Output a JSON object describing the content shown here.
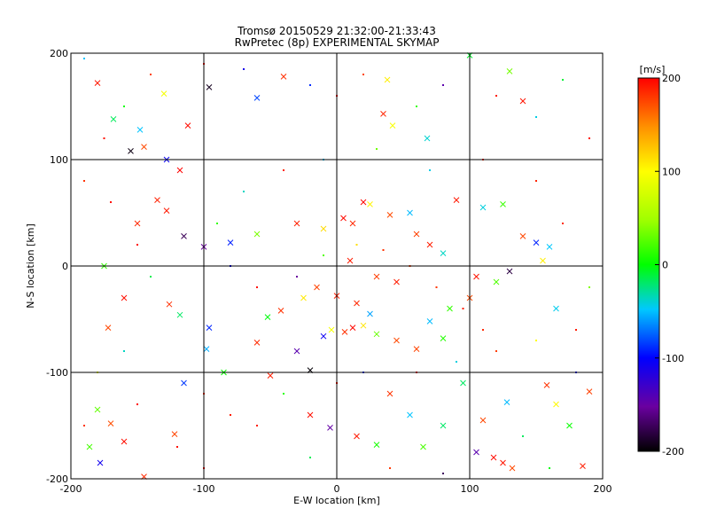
{
  "chart_data": {
    "type": "scatter",
    "title": "Tromsø 20150529 21:32:00-21:33:43",
    "subtitle": "RwPretec (8p) EXPERIMENTAL SKYMAP",
    "xlabel": "E-W location [km]",
    "ylabel": "N-S location [km]",
    "xlim": [
      -200,
      200
    ],
    "ylim": [
      -200,
      200
    ],
    "x_ticks": [
      "-200",
      "-100",
      "0",
      "100",
      "200"
    ],
    "y_ticks": [
      "-200",
      "-100",
      "0",
      "100",
      "200"
    ],
    "grid": true,
    "colorbar": {
      "label": "[m/s]",
      "range": [
        -200,
        200
      ],
      "ticks": [
        "-200",
        "-100",
        "0",
        "100",
        "200"
      ],
      "colormap": "rainbow (black-purple-blue-cyan-green-yellow-orange-red)"
    },
    "series": [
      {
        "marker": "x",
        "points": [
          [
            -180,
            172
          ],
          [
            -168,
            138
          ],
          [
            -148,
            128
          ],
          [
            -130,
            162
          ],
          [
            -112,
            132
          ],
          [
            -96,
            168
          ],
          [
            -60,
            158
          ],
          [
            -40,
            178
          ],
          [
            38,
            175
          ],
          [
            35,
            143
          ],
          [
            42,
            132
          ],
          [
            68,
            120
          ],
          [
            100,
            198
          ],
          [
            130,
            183
          ],
          [
            140,
            155
          ],
          [
            -145,
            112
          ],
          [
            -155,
            108
          ],
          [
            -128,
            100
          ],
          [
            -118,
            90
          ],
          [
            -135,
            62
          ],
          [
            -128,
            52
          ],
          [
            -115,
            28
          ],
          [
            -172,
            -58
          ],
          [
            -126,
            -36
          ],
          [
            -118,
            -46
          ],
          [
            -96,
            -58
          ],
          [
            -98,
            -78
          ],
          [
            -60,
            -72
          ],
          [
            -30,
            -80
          ],
          [
            -10,
            -66
          ],
          [
            -4,
            -60
          ],
          [
            6,
            -62
          ],
          [
            12,
            -58
          ],
          [
            20,
            -56
          ],
          [
            30,
            -64
          ],
          [
            45,
            -70
          ],
          [
            60,
            -78
          ],
          [
            80,
            -68
          ],
          [
            -85,
            -100
          ],
          [
            -50,
            -103
          ],
          [
            -20,
            -98
          ],
          [
            -115,
            -110
          ],
          [
            -160,
            -165
          ],
          [
            -170,
            -148
          ],
          [
            -180,
            -135
          ],
          [
            -186,
            -170
          ],
          [
            -178,
            -185
          ],
          [
            -122,
            -158
          ],
          [
            -145,
            -198
          ],
          [
            -20,
            -140
          ],
          [
            -5,
            -152
          ],
          [
            15,
            -160
          ],
          [
            30,
            -168
          ],
          [
            40,
            -120
          ],
          [
            55,
            -140
          ],
          [
            65,
            -170
          ],
          [
            80,
            -150
          ],
          [
            95,
            -110
          ],
          [
            105,
            -175
          ],
          [
            118,
            -180
          ],
          [
            125,
            -185
          ],
          [
            132,
            -190
          ],
          [
            110,
            -145
          ],
          [
            128,
            -128
          ],
          [
            158,
            -112
          ],
          [
            165,
            -130
          ],
          [
            175,
            -150
          ],
          [
            190,
            -118
          ],
          [
            185,
            -188
          ],
          [
            20,
            60
          ],
          [
            40,
            48
          ],
          [
            55,
            50
          ],
          [
            90,
            62
          ],
          [
            110,
            55
          ],
          [
            125,
            58
          ],
          [
            140,
            28
          ],
          [
            150,
            22
          ],
          [
            160,
            18
          ],
          [
            -60,
            30
          ],
          [
            -30,
            40
          ],
          [
            -10,
            35
          ],
          [
            5,
            45
          ],
          [
            12,
            40
          ],
          [
            25,
            58
          ],
          [
            -80,
            22
          ],
          [
            -100,
            18
          ],
          [
            -150,
            40
          ],
          [
            60,
            30
          ],
          [
            70,
            20
          ],
          [
            80,
            12
          ],
          [
            10,
            5
          ],
          [
            30,
            -10
          ],
          [
            45,
            -15
          ],
          [
            -42,
            -42
          ],
          [
            -52,
            -48
          ],
          [
            -25,
            -30
          ],
          [
            -15,
            -20
          ],
          [
            0,
            -28
          ],
          [
            15,
            -35
          ],
          [
            25,
            -45
          ],
          [
            70,
            -52
          ],
          [
            85,
            -40
          ],
          [
            100,
            -30
          ],
          [
            105,
            -10
          ],
          [
            120,
            -15
          ],
          [
            130,
            -5
          ],
          [
            155,
            5
          ],
          [
            165,
            -40
          ],
          [
            -160,
            -30
          ],
          [
            -175,
            0
          ]
        ]
      },
      {
        "marker": "dot",
        "points": [
          [
            -190,
            195
          ],
          [
            -175,
            120
          ],
          [
            -160,
            150
          ],
          [
            -140,
            180
          ],
          [
            -100,
            190
          ],
          [
            -70,
            185
          ],
          [
            -20,
            170
          ],
          [
            0,
            160
          ],
          [
            20,
            180
          ],
          [
            60,
            150
          ],
          [
            80,
            170
          ],
          [
            120,
            160
          ],
          [
            150,
            140
          ],
          [
            170,
            175
          ],
          [
            190,
            120
          ],
          [
            -190,
            80
          ],
          [
            -170,
            60
          ],
          [
            -150,
            20
          ],
          [
            -140,
            -10
          ],
          [
            -160,
            -80
          ],
          [
            -180,
            -100
          ],
          [
            -190,
            -150
          ],
          [
            -150,
            -130
          ],
          [
            -120,
            -170
          ],
          [
            -100,
            -190
          ],
          [
            -60,
            -150
          ],
          [
            -40,
            -120
          ],
          [
            0,
            -110
          ],
          [
            20,
            -100
          ],
          [
            60,
            -100
          ],
          [
            90,
            -90
          ],
          [
            120,
            -80
          ],
          [
            150,
            -70
          ],
          [
            180,
            -60
          ],
          [
            190,
            -20
          ],
          [
            170,
            40
          ],
          [
            150,
            80
          ],
          [
            110,
            100
          ],
          [
            70,
            90
          ],
          [
            30,
            110
          ],
          [
            -10,
            100
          ],
          [
            -40,
            90
          ],
          [
            -70,
            70
          ],
          [
            -90,
            40
          ],
          [
            -80,
            0
          ],
          [
            -60,
            -20
          ],
          [
            -30,
            -10
          ],
          [
            -10,
            10
          ],
          [
            15,
            20
          ],
          [
            35,
            15
          ],
          [
            55,
            0
          ],
          [
            75,
            -20
          ],
          [
            95,
            -40
          ],
          [
            110,
            -60
          ],
          [
            -100,
            -120
          ],
          [
            -80,
            -140
          ],
          [
            -20,
            -180
          ],
          [
            40,
            -190
          ],
          [
            80,
            -195
          ],
          [
            140,
            -160
          ],
          [
            160,
            -190
          ],
          [
            180,
            -100
          ]
        ]
      }
    ]
  }
}
